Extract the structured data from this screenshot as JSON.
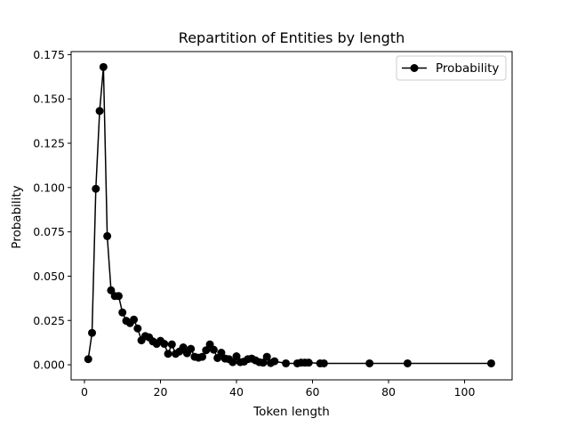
{
  "chart_data": {
    "type": "line",
    "title": "Repartition of Entities by length",
    "xlabel": "Token length",
    "ylabel": "Probability",
    "xlim": [
      -3.5,
      112.5
    ],
    "ylim": [
      -0.0085,
      0.1767
    ],
    "xticks": [
      0,
      20,
      40,
      60,
      80,
      100
    ],
    "yticks": [
      0.0,
      0.025,
      0.05,
      0.075,
      0.1,
      0.125,
      0.15,
      0.175
    ],
    "ytick_labels": [
      "0.000",
      "0.025",
      "0.050",
      "0.075",
      "0.100",
      "0.125",
      "0.150",
      "0.175"
    ],
    "grid": false,
    "legend_position": "top-right",
    "series": [
      {
        "name": "Probability",
        "color": "#000000",
        "marker": "circle",
        "points": [
          [
            1,
            0.0032
          ],
          [
            2,
            0.018
          ],
          [
            3,
            0.0993
          ],
          [
            4,
            0.1432
          ],
          [
            5,
            0.168
          ],
          [
            6,
            0.0726
          ],
          [
            7,
            0.042
          ],
          [
            8,
            0.0388
          ],
          [
            9,
            0.0388
          ],
          [
            10,
            0.0295
          ],
          [
            11,
            0.0248
          ],
          [
            12,
            0.0235
          ],
          [
            13,
            0.0255
          ],
          [
            14,
            0.0205
          ],
          [
            15,
            0.0138
          ],
          [
            16,
            0.0162
          ],
          [
            17,
            0.0155
          ],
          [
            18,
            0.0132
          ],
          [
            19,
            0.0118
          ],
          [
            20,
            0.0135
          ],
          [
            21,
            0.0118
          ],
          [
            22,
            0.0062
          ],
          [
            23,
            0.0115
          ],
          [
            24,
            0.0062
          ],
          [
            25,
            0.0075
          ],
          [
            26,
            0.0098
          ],
          [
            27,
            0.0065
          ],
          [
            28,
            0.009
          ],
          [
            29,
            0.0045
          ],
          [
            30,
            0.004
          ],
          [
            31,
            0.0045
          ],
          [
            32,
            0.0082
          ],
          [
            33,
            0.0115
          ],
          [
            34,
            0.0085
          ],
          [
            35,
            0.0038
          ],
          [
            36,
            0.0068
          ],
          [
            37,
            0.0035
          ],
          [
            38,
            0.0032
          ],
          [
            39,
            0.0015
          ],
          [
            40,
            0.0048
          ],
          [
            41,
            0.0015
          ],
          [
            42,
            0.0018
          ],
          [
            43,
            0.0032
          ],
          [
            44,
            0.0035
          ],
          [
            45,
            0.0025
          ],
          [
            46,
            0.0015
          ],
          [
            47,
            0.0012
          ],
          [
            48,
            0.0045
          ],
          [
            49,
            0.001
          ],
          [
            50,
            0.002
          ],
          [
            53,
            0.0008
          ],
          [
            56,
            0.0008
          ],
          [
            57,
            0.0012
          ],
          [
            58,
            0.0012
          ],
          [
            59,
            0.0012
          ],
          [
            62,
            0.0008
          ],
          [
            63,
            0.0008
          ],
          [
            75,
            0.0008
          ],
          [
            85,
            0.0008
          ],
          [
            107,
            0.0008
          ]
        ]
      }
    ]
  }
}
